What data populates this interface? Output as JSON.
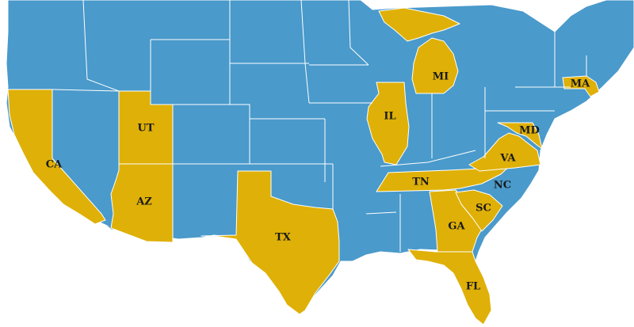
{
  "map": {
    "colors": {
      "highlighted": "#dfb007",
      "other": "#4a9acb",
      "border": "#ffffff",
      "background": "#ffffff"
    },
    "highlighted_states": [
      {
        "id": "CA",
        "label": "CA"
      },
      {
        "id": "UT",
        "label": "UT"
      },
      {
        "id": "AZ",
        "label": "AZ"
      },
      {
        "id": "TX",
        "label": "TX"
      },
      {
        "id": "IL",
        "label": "IL"
      },
      {
        "id": "MI",
        "label": "MI"
      },
      {
        "id": "TN",
        "label": "TN"
      },
      {
        "id": "GA",
        "label": "GA"
      },
      {
        "id": "SC",
        "label": "SC"
      },
      {
        "id": "FL",
        "label": "FL"
      },
      {
        "id": "VA",
        "label": "VA"
      },
      {
        "id": "MD",
        "label": "MD"
      },
      {
        "id": "MA",
        "label": "MA"
      }
    ],
    "other_labeled_states": [
      {
        "id": "NC",
        "label": "NC"
      }
    ]
  }
}
